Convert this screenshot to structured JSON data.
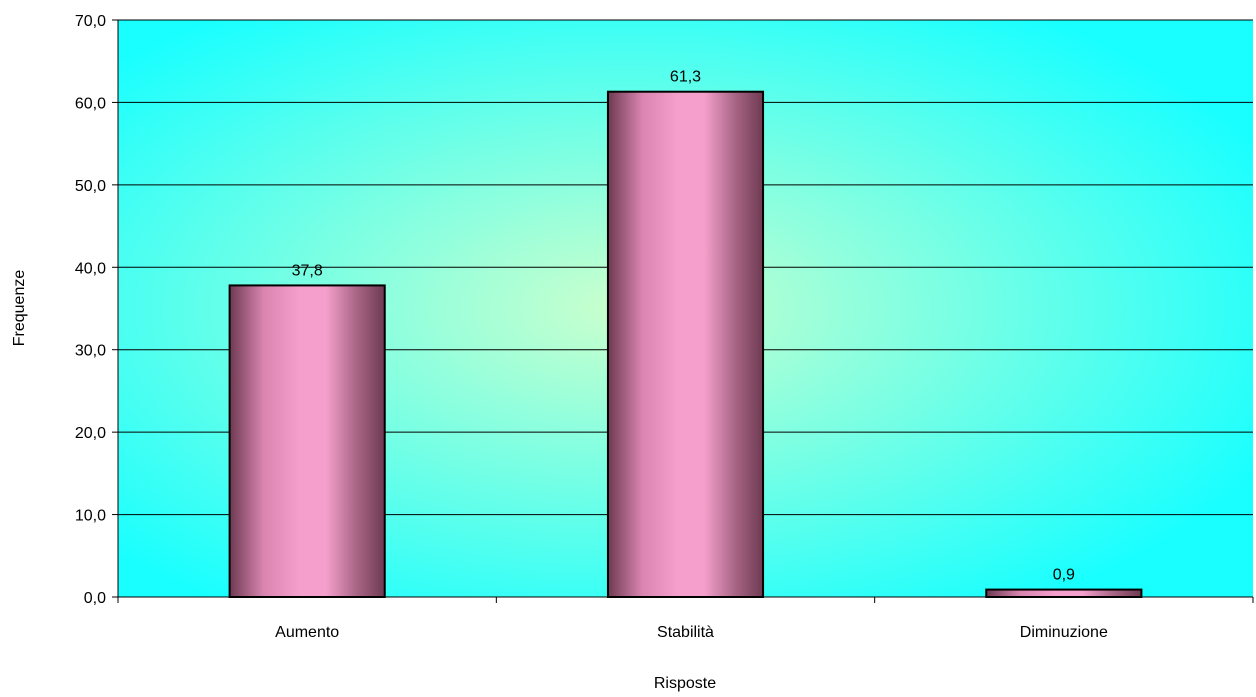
{
  "chart_data": {
    "type": "bar",
    "categories": [
      "Aumento",
      "Stabilità",
      "Diminuzione"
    ],
    "values": [
      37.8,
      61.3,
      0.9
    ],
    "value_labels": [
      "37,8",
      "61,3",
      "0,9"
    ],
    "xlabel": "Risposte",
    "ylabel": "Frequenze",
    "ylim": [
      0,
      70
    ],
    "yticks": [
      0,
      10,
      20,
      30,
      40,
      50,
      60,
      70
    ],
    "ytick_labels": [
      "0,0",
      "10,0",
      "20,0",
      "30,0",
      "40,0",
      "50,0",
      "60,0",
      "70,0"
    ],
    "grid": true,
    "legend": "none",
    "colors": {
      "bar_light": "#f5a0cc",
      "bar_dark": "#6e3a52",
      "plot_background_center": "#ccffcc",
      "plot_background_edge": "#19ffff",
      "gridline": "#000000"
    }
  }
}
